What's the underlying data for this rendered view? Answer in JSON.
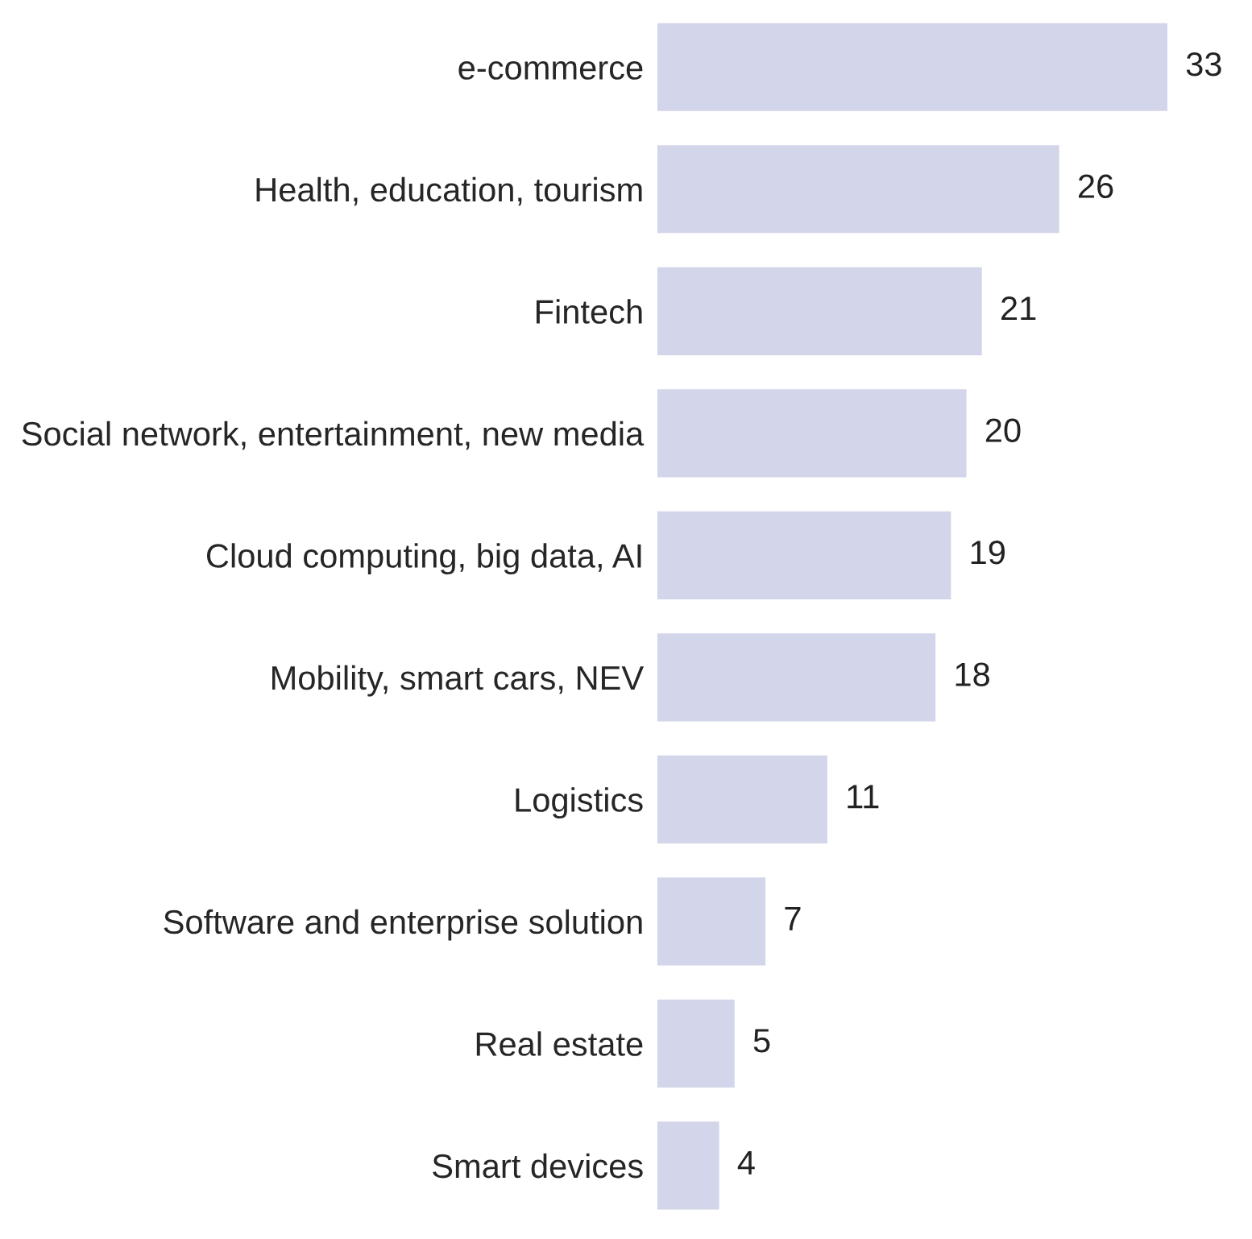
{
  "chart_data": {
    "type": "bar",
    "orientation": "horizontal",
    "categories": [
      "e-commerce",
      "Health, education, tourism",
      "Fintech",
      "Social network, entertainment, new media",
      "Cloud computing, big data, AI",
      "Mobility, smart cars, NEV",
      "Logistics",
      "Software and enterprise solution",
      "Real estate",
      "Smart devices"
    ],
    "values": [
      33,
      26,
      21,
      20,
      19,
      18,
      11,
      7,
      5,
      4
    ],
    "color": "#d3d5ea",
    "data_labels": true,
    "grid": false,
    "legend": false
  }
}
